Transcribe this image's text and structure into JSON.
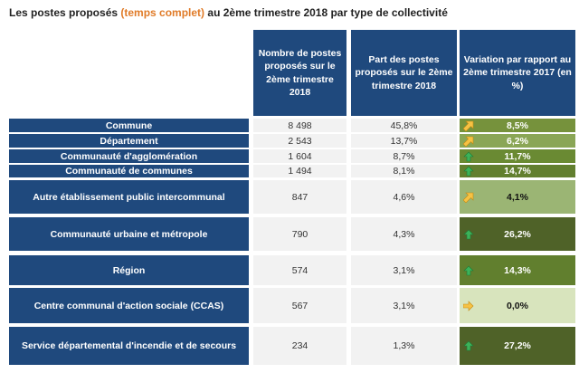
{
  "title": {
    "before": "Les postes proposés ",
    "highlight": "(temps complet)",
    "after": " au 2ème trimestre 2018 par type de collectivité"
  },
  "headers": [
    "Nombre de postes proposés sur le 2ème trimestre 2018",
    "Part des postes proposés sur le 2ème trimestre 2018",
    "Variation par rapport au 2ème trimestre 2017 (en %)"
  ],
  "rows": [
    {
      "label": "Commune",
      "count": "8 498",
      "share": "45,8%",
      "variation": "8,5%",
      "icon": "diagonal-up-arrow",
      "color": "#76923c",
      "text": "#ffffff"
    },
    {
      "label": "Département",
      "count": "2 543",
      "share": "13,7%",
      "variation": "6,2%",
      "icon": "diagonal-up-arrow",
      "color": "#8aa656",
      "text": "#ffffff"
    },
    {
      "label": "Communauté d'agglomération",
      "count": "1 604",
      "share": "8,7%",
      "variation": "11,7%",
      "icon": "up-arrow",
      "color": "#6a8a33",
      "text": "#ffffff"
    },
    {
      "label": "Communauté de communes",
      "count": "1 494",
      "share": "8,1%",
      "variation": "14,7%",
      "icon": "up-arrow",
      "color": "#627f2f",
      "text": "#ffffff"
    },
    {
      "label": "Autre établissement public intercommunal",
      "count": "847",
      "share": "4,6%",
      "variation": "4,1%",
      "icon": "diagonal-up-arrow",
      "color": "#9bb574",
      "text": "#111111"
    },
    {
      "label": "Communauté urbaine et métropole",
      "count": "790",
      "share": "4,3%",
      "variation": "26,2%",
      "icon": "up-arrow",
      "color": "#4f6228",
      "text": "#ffffff"
    },
    {
      "label": "Région",
      "count": "574",
      "share": "3,1%",
      "variation": "14,3%",
      "icon": "up-arrow",
      "color": "#617f2e",
      "text": "#ffffff"
    },
    {
      "label": "Centre communal d'action sociale (CCAS)",
      "count": "567",
      "share": "3,1%",
      "variation": "0,0%",
      "icon": "right-arrow",
      "color": "#d8e4bd",
      "text": "#111111"
    },
    {
      "label": "Service départemental d'incendie et de secours",
      "count": "234",
      "share": "1,3%",
      "variation": "27,2%",
      "icon": "up-arrow",
      "color": "#4f6228",
      "text": "#ffffff"
    }
  ]
}
